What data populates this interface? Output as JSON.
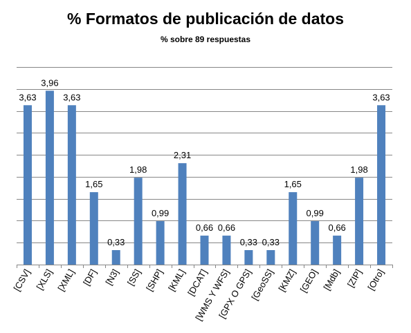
{
  "chart_data": {
    "type": "bar",
    "title": "% Formatos de publicación de datos",
    "subtitle": "%  sobre 89 respuestas",
    "xlabel": "",
    "ylabel": "",
    "ylim": [
      0,
      4.5
    ],
    "grid": true,
    "categories": [
      "[CSV]",
      "[XLS]",
      "[XML]",
      "[DF]",
      "[N3]",
      "[SS]",
      "[SHP]",
      "[KML]",
      "[DCAT]",
      "[WMS Y WFS]",
      "[GPX O GPS]",
      "[GeoSS]",
      "[KMZ]",
      "[GEO]",
      "[Mdb]",
      "[ZIP]",
      "[Otro]"
    ],
    "values": [
      3.63,
      3.96,
      3.63,
      1.65,
      0.33,
      1.98,
      0.99,
      2.31,
      0.66,
      0.66,
      0.33,
      0.33,
      1.65,
      0.99,
      0.66,
      1.98,
      3.63
    ],
    "labels": [
      "3,63",
      "3,96",
      "3,63",
      "1,65",
      "0,33",
      "1,98",
      "0,99",
      "2,31",
      "0,66",
      "0,66",
      "0,33",
      "0,33",
      "1,65",
      "0,99",
      "0,66",
      "1,98",
      "3,63"
    ],
    "bar_color": "#4f81bd",
    "grid_color": "#868686"
  }
}
